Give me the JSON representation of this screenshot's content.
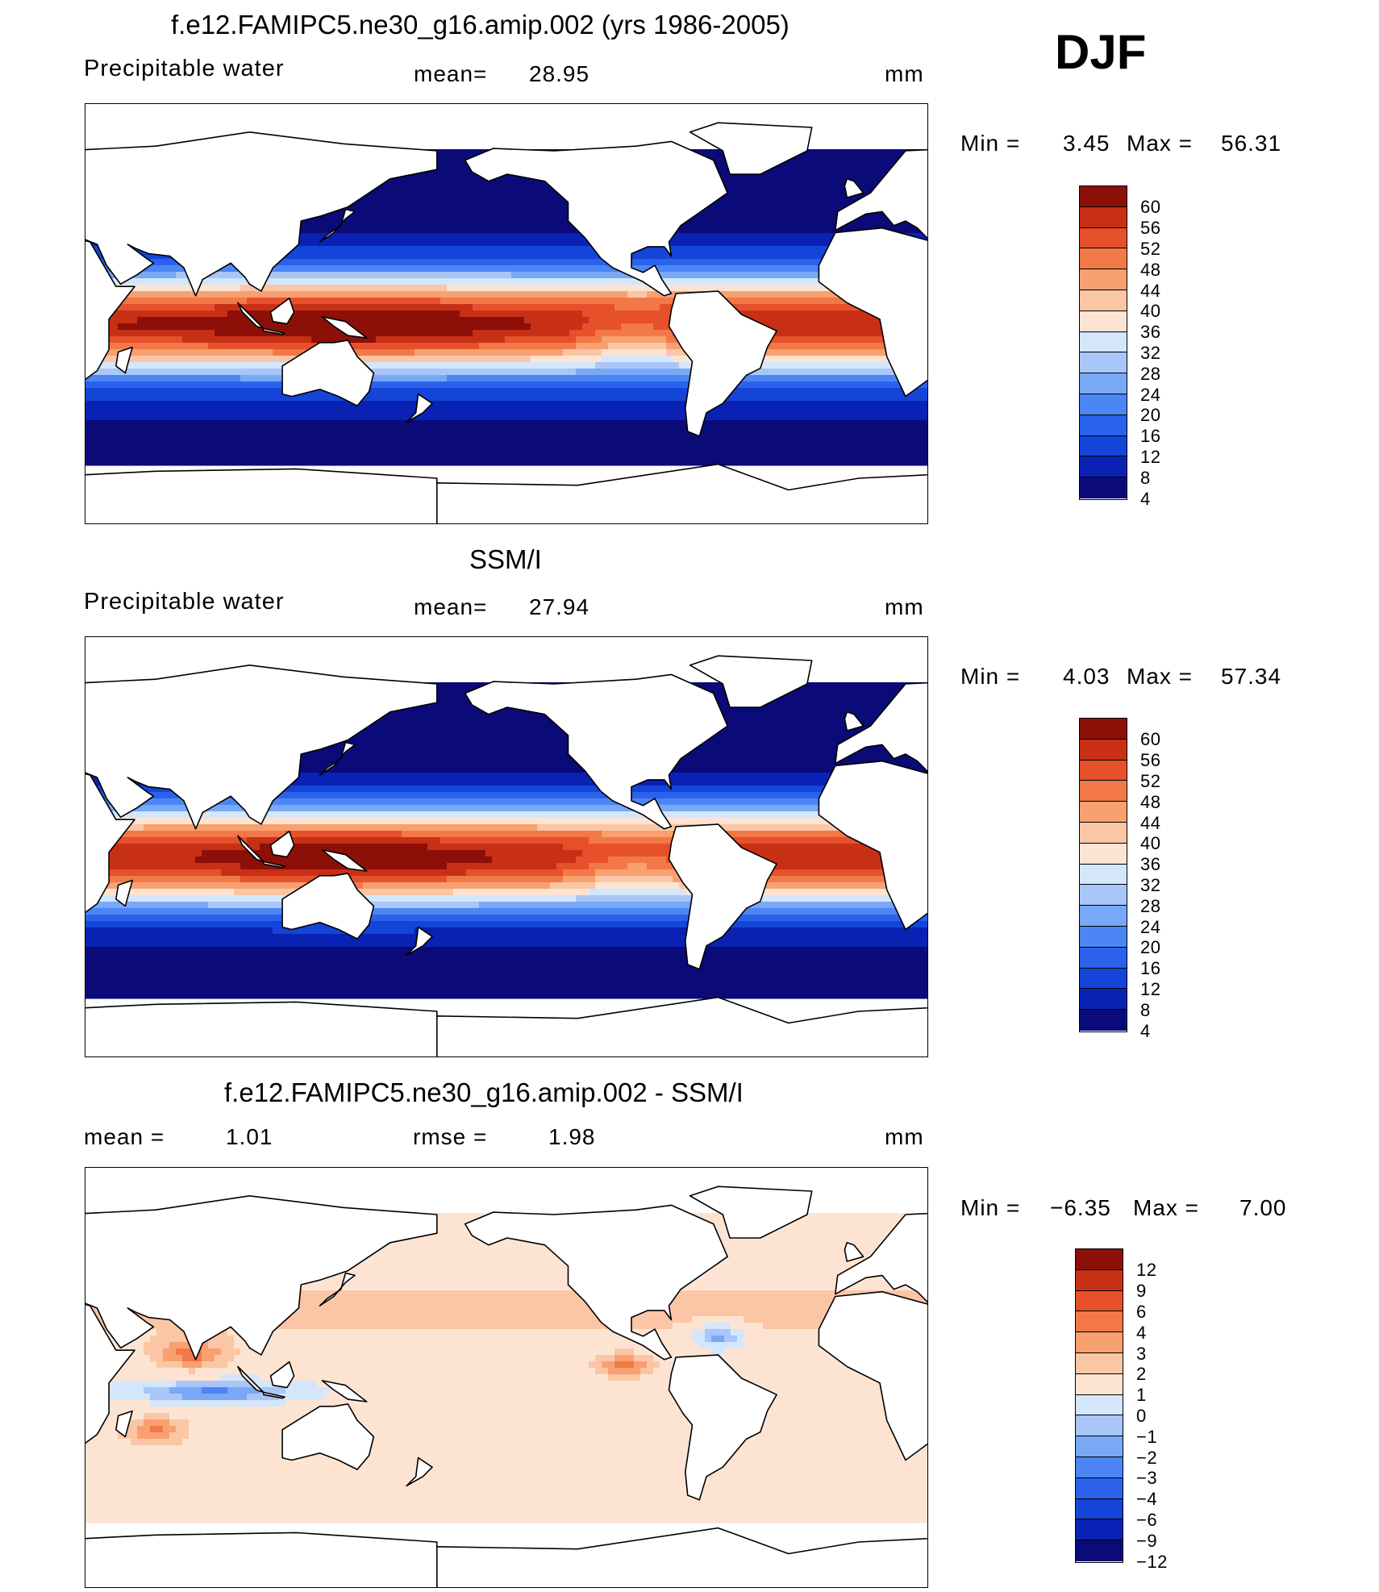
{
  "header": {
    "main_title": "f.e12.FAMIPC5.ne30_g16.amip.002 (yrs 1986-2005)",
    "season": "DJF"
  },
  "colors": {
    "main_scale": [
      "#0a0a78",
      "#0a22b4",
      "#1444d8",
      "#2a62ec",
      "#4c86f4",
      "#78a8f6",
      "#a8c6f8",
      "#d4e6fc",
      "#fde4d2",
      "#fbc6a6",
      "#f8a070",
      "#f27848",
      "#e6502a",
      "#c83016",
      "#8c1008"
    ],
    "diff_scale": [
      "#0a0a78",
      "#0a22b4",
      "#1444d8",
      "#2a62ec",
      "#4c86f4",
      "#78a8f6",
      "#a8c6f8",
      "#d4e6fc",
      "#fde4d2",
      "#fbc6a6",
      "#f8a070",
      "#f27848",
      "#e6502a",
      "#c83016",
      "#8c1008"
    ]
  },
  "chart_data": [
    {
      "type": "heatmap",
      "title": "f.e12.FAMIPC5.ne30_g16.amip.002 (yrs 1986-2005)",
      "variable": "Precipitable water",
      "units": "mm",
      "mean_label": "mean=",
      "mean": "28.95",
      "min_label": "Min =",
      "min": "3.45",
      "max_label": "Max =",
      "max": "56.31",
      "colorbar_levels": [
        "60",
        "56",
        "52",
        "48",
        "44",
        "40",
        "36",
        "32",
        "28",
        "24",
        "20",
        "16",
        "12",
        "8",
        "4"
      ]
    },
    {
      "type": "heatmap",
      "title": "SSM/I",
      "variable": "Precipitable water",
      "units": "mm",
      "mean_label": "mean=",
      "mean": "27.94",
      "min_label": "Min =",
      "min": "4.03",
      "max_label": "Max =",
      "max": "57.34",
      "colorbar_levels": [
        "60",
        "56",
        "52",
        "48",
        "44",
        "40",
        "36",
        "32",
        "28",
        "24",
        "20",
        "16",
        "12",
        "8",
        "4"
      ]
    },
    {
      "type": "heatmap",
      "title": "f.e12.FAMIPC5.ne30_g16.amip.002 - SSM/I",
      "units": "mm",
      "mean_label": "mean =",
      "mean": "1.01",
      "rmse_label": "rmse =",
      "rmse": "1.98",
      "min_label": "Min =",
      "min": "−6.35",
      "max_label": "Max =",
      "max": "7.00",
      "colorbar_levels": [
        "12",
        "9",
        "6",
        "4",
        "3",
        "2",
        "1",
        "0",
        "−1",
        "−2",
        "−3",
        "−4",
        "−6",
        "−9",
        "−12"
      ]
    }
  ]
}
